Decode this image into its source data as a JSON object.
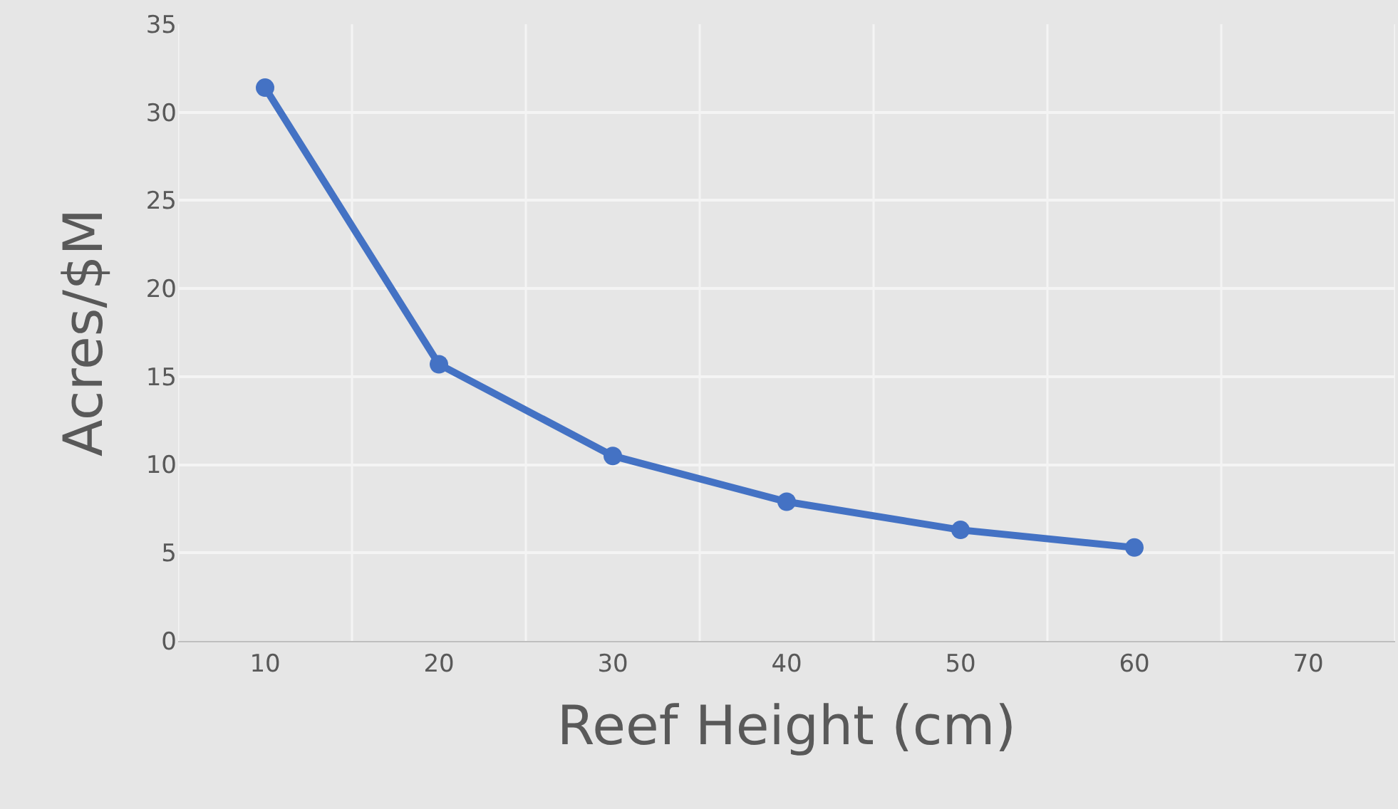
{
  "chart_data": {
    "type": "line",
    "xlabel": "Reef Height (cm)",
    "ylabel": "Acres/$M",
    "categories": [
      "10",
      "20",
      "30",
      "40",
      "50",
      "60",
      "70"
    ],
    "series": [
      {
        "color": "#4472c4",
        "values": [
          31.4,
          15.7,
          10.5,
          7.9,
          6.3,
          5.3,
          null
        ]
      }
    ],
    "ylim": [
      0,
      35
    ],
    "yticks": [
      0,
      5,
      10,
      15,
      20,
      25,
      30,
      35
    ],
    "grid": true,
    "marker": "circle",
    "line_style": "solid"
  }
}
